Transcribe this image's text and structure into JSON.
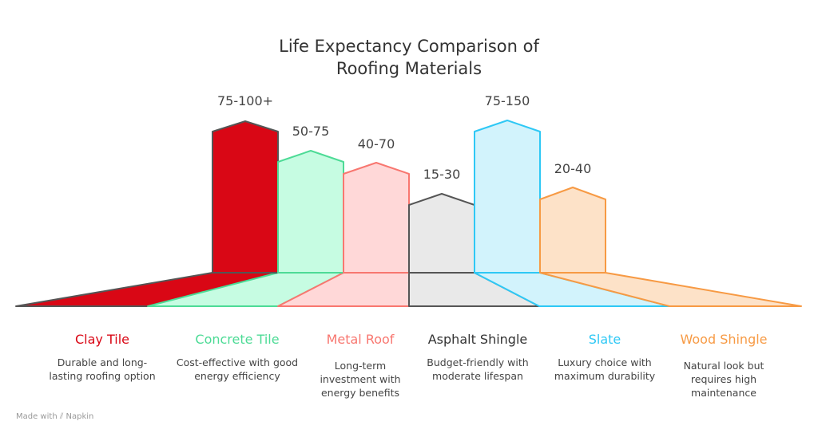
{
  "title_line1": "Life Expectancy Comparison of",
  "title_line2": "Roofing Materials",
  "materials": [
    {
      "name": "Clay Tile",
      "range": "75-100+",
      "description": "Durable and long-lasting roofing option",
      "fill": "#d90715",
      "stroke": "#555555",
      "label_color": "#d90715"
    },
    {
      "name": "Concrete Tile",
      "range": "50-75",
      "description": "Cost-effective with good energy efficiency",
      "fill": "#c6fce2",
      "stroke": "#4ddb96",
      "label_color": "#4ddb96"
    },
    {
      "name": "Metal Roof",
      "range": "40-70",
      "description": "Long-term investment with energy benefits",
      "fill": "#ffd8d8",
      "stroke": "#f87770",
      "label_color": "#f87770"
    },
    {
      "name": "Asphalt Shingle",
      "range": "15-30",
      "description": "Budget-friendly with moderate lifespan",
      "fill": "#e9e9e9",
      "stroke": "#555555",
      "label_color": "#333333"
    },
    {
      "name": "Slate",
      "range": "75-150",
      "description": "Luxury choice with maximum durability",
      "fill": "#d2f3fc",
      "stroke": "#2ec8f5",
      "label_color": "#2ec8f5"
    },
    {
      "name": "Wood Shingle",
      "range": "20-40",
      "description": "Natural look but requires high maintenance",
      "fill": "#fde2c8",
      "stroke": "#f79a44",
      "label_color": "#f79a44"
    }
  ],
  "footer": {
    "made_with": "Made with",
    "brand": "Napkin"
  }
}
